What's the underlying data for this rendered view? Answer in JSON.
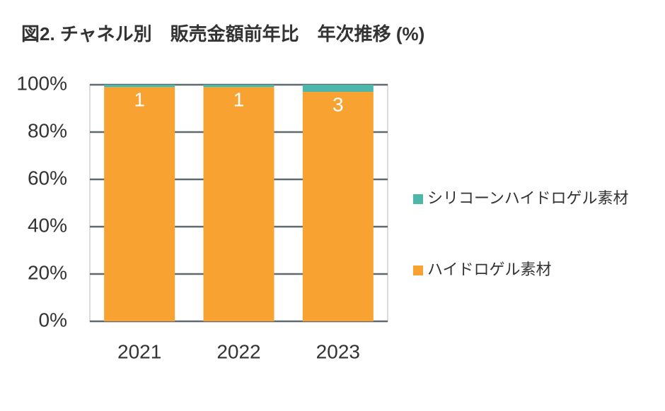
{
  "chart_data": {
    "type": "stacked_bar",
    "title": "図2. チャネル別　販売金額前年比　年次推移 (%)",
    "categories": [
      "2021",
      "2022",
      "2023"
    ],
    "series": [
      {
        "name": "シリコーンハイドロゲル素材",
        "color": "#4db8aa",
        "values": [
          1,
          1,
          3
        ]
      },
      {
        "name": "ハイドロゲル素材",
        "color": "#f8a331",
        "values": [
          99,
          99,
          97
        ]
      }
    ],
    "ylim": [
      0,
      100
    ],
    "yticks": [
      {
        "value": 0,
        "label": "0%"
      },
      {
        "value": 20,
        "label": "20%"
      },
      {
        "value": 40,
        "label": "40%"
      },
      {
        "value": 60,
        "label": "60%"
      },
      {
        "value": 80,
        "label": "80%"
      },
      {
        "value": 100,
        "label": "100%"
      }
    ],
    "grid": true,
    "legend": "right"
  }
}
